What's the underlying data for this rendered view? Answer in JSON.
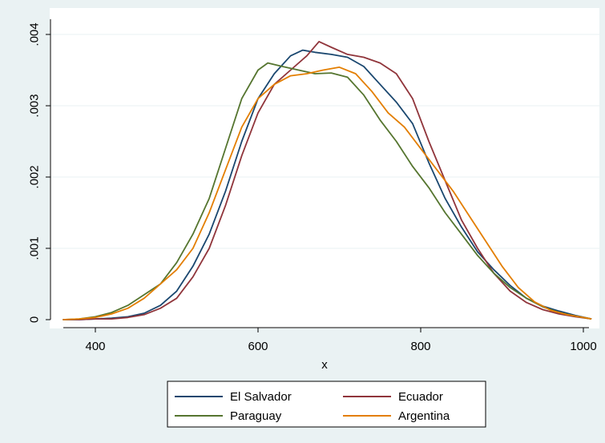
{
  "chart_data": {
    "type": "line",
    "title": "",
    "xlabel": "x",
    "ylabel": "",
    "xlim": [
      360,
      1010
    ],
    "ylim": [
      0,
      0.004
    ],
    "x_ticks": [
      400,
      600,
      800,
      1000
    ],
    "x_tick_labels": [
      "400",
      "600",
      "800",
      "1000"
    ],
    "y_ticks": [
      0,
      0.001,
      0.002,
      0.003,
      0.004
    ],
    "y_tick_labels": [
      "0",
      ".001",
      ".002",
      ".003",
      ".004"
    ],
    "grid": true,
    "legend_position": "bottom",
    "series": [
      {
        "name": "El Salvador",
        "color": "#1a476f",
        "points": [
          [
            360,
            0
          ],
          [
            380,
            0
          ],
          [
            400,
            1e-05
          ],
          [
            420,
            2e-05
          ],
          [
            440,
            4e-05
          ],
          [
            460,
            9e-05
          ],
          [
            480,
            0.0002
          ],
          [
            500,
            0.0004
          ],
          [
            520,
            0.00075
          ],
          [
            540,
            0.0012
          ],
          [
            560,
            0.0018
          ],
          [
            580,
            0.0025
          ],
          [
            600,
            0.0031
          ],
          [
            620,
            0.00345
          ],
          [
            640,
            0.0037
          ],
          [
            655,
            0.00378
          ],
          [
            670,
            0.00375
          ],
          [
            690,
            0.00372
          ],
          [
            710,
            0.00368
          ],
          [
            730,
            0.00355
          ],
          [
            750,
            0.0033
          ],
          [
            770,
            0.00305
          ],
          [
            790,
            0.00275
          ],
          [
            810,
            0.0022
          ],
          [
            830,
            0.0017
          ],
          [
            850,
            0.0013
          ],
          [
            870,
            0.00095
          ],
          [
            890,
            0.0007
          ],
          [
            910,
            0.00048
          ],
          [
            930,
            0.0003
          ],
          [
            950,
            0.00019
          ],
          [
            970,
            0.00012
          ],
          [
            990,
            6e-05
          ],
          [
            1010,
            1e-05
          ]
        ]
      },
      {
        "name": "Ecuador",
        "color": "#90353b",
        "points": [
          [
            360,
            0
          ],
          [
            380,
            0
          ],
          [
            400,
            1e-05
          ],
          [
            420,
            1e-05
          ],
          [
            440,
            3e-05
          ],
          [
            460,
            7e-05
          ],
          [
            480,
            0.00016
          ],
          [
            500,
            0.0003
          ],
          [
            520,
            0.0006
          ],
          [
            540,
            0.001
          ],
          [
            560,
            0.0016
          ],
          [
            580,
            0.0023
          ],
          [
            600,
            0.0029
          ],
          [
            620,
            0.0033
          ],
          [
            640,
            0.0035
          ],
          [
            660,
            0.0037
          ],
          [
            675,
            0.0039
          ],
          [
            690,
            0.00382
          ],
          [
            710,
            0.00372
          ],
          [
            730,
            0.00368
          ],
          [
            750,
            0.0036
          ],
          [
            770,
            0.00345
          ],
          [
            790,
            0.0031
          ],
          [
            810,
            0.0025
          ],
          [
            830,
            0.00195
          ],
          [
            850,
            0.0014
          ],
          [
            870,
            0.001
          ],
          [
            890,
            0.00065
          ],
          [
            910,
            0.0004
          ],
          [
            930,
            0.00024
          ],
          [
            950,
            0.00014
          ],
          [
            970,
            8e-05
          ],
          [
            990,
            4e-05
          ],
          [
            1010,
            1e-05
          ]
        ]
      },
      {
        "name": "Paraguay",
        "color": "#55752f",
        "points": [
          [
            360,
            0
          ],
          [
            380,
            1e-05
          ],
          [
            400,
            4e-05
          ],
          [
            420,
            0.0001
          ],
          [
            440,
            0.0002
          ],
          [
            460,
            0.00035
          ],
          [
            480,
            0.0005
          ],
          [
            500,
            0.0008
          ],
          [
            520,
            0.0012
          ],
          [
            540,
            0.0017
          ],
          [
            560,
            0.0024
          ],
          [
            580,
            0.0031
          ],
          [
            600,
            0.0035
          ],
          [
            612,
            0.0036
          ],
          [
            630,
            0.00355
          ],
          [
            650,
            0.0035
          ],
          [
            670,
            0.00345
          ],
          [
            690,
            0.00346
          ],
          [
            710,
            0.0034
          ],
          [
            730,
            0.00315
          ],
          [
            750,
            0.0028
          ],
          [
            770,
            0.0025
          ],
          [
            790,
            0.00215
          ],
          [
            810,
            0.00185
          ],
          [
            830,
            0.0015
          ],
          [
            850,
            0.0012
          ],
          [
            870,
            0.0009
          ],
          [
            890,
            0.00065
          ],
          [
            910,
            0.00045
          ],
          [
            930,
            0.0003
          ],
          [
            950,
            0.00018
          ],
          [
            970,
            0.0001
          ],
          [
            990,
            5e-05
          ],
          [
            1010,
            1e-05
          ]
        ]
      },
      {
        "name": "Argentina",
        "color": "#e37e00",
        "points": [
          [
            360,
            0
          ],
          [
            380,
            1e-05
          ],
          [
            400,
            3e-05
          ],
          [
            420,
            8e-05
          ],
          [
            440,
            0.00016
          ],
          [
            460,
            0.0003
          ],
          [
            480,
            0.0005
          ],
          [
            500,
            0.0007
          ],
          [
            520,
            0.001
          ],
          [
            540,
            0.0015
          ],
          [
            560,
            0.0021
          ],
          [
            580,
            0.0027
          ],
          [
            600,
            0.0031
          ],
          [
            620,
            0.0033
          ],
          [
            640,
            0.00342
          ],
          [
            660,
            0.00345
          ],
          [
            680,
            0.0035
          ],
          [
            700,
            0.00354
          ],
          [
            720,
            0.00345
          ],
          [
            740,
            0.0032
          ],
          [
            760,
            0.0029
          ],
          [
            780,
            0.0027
          ],
          [
            800,
            0.0024
          ],
          [
            820,
            0.0021
          ],
          [
            840,
            0.0018
          ],
          [
            860,
            0.00145
          ],
          [
            880,
            0.0011
          ],
          [
            900,
            0.00075
          ],
          [
            920,
            0.00045
          ],
          [
            940,
            0.00025
          ],
          [
            960,
            0.00013
          ],
          [
            980,
            7e-05
          ],
          [
            1000,
            3e-05
          ],
          [
            1010,
            1e-05
          ]
        ]
      }
    ]
  }
}
